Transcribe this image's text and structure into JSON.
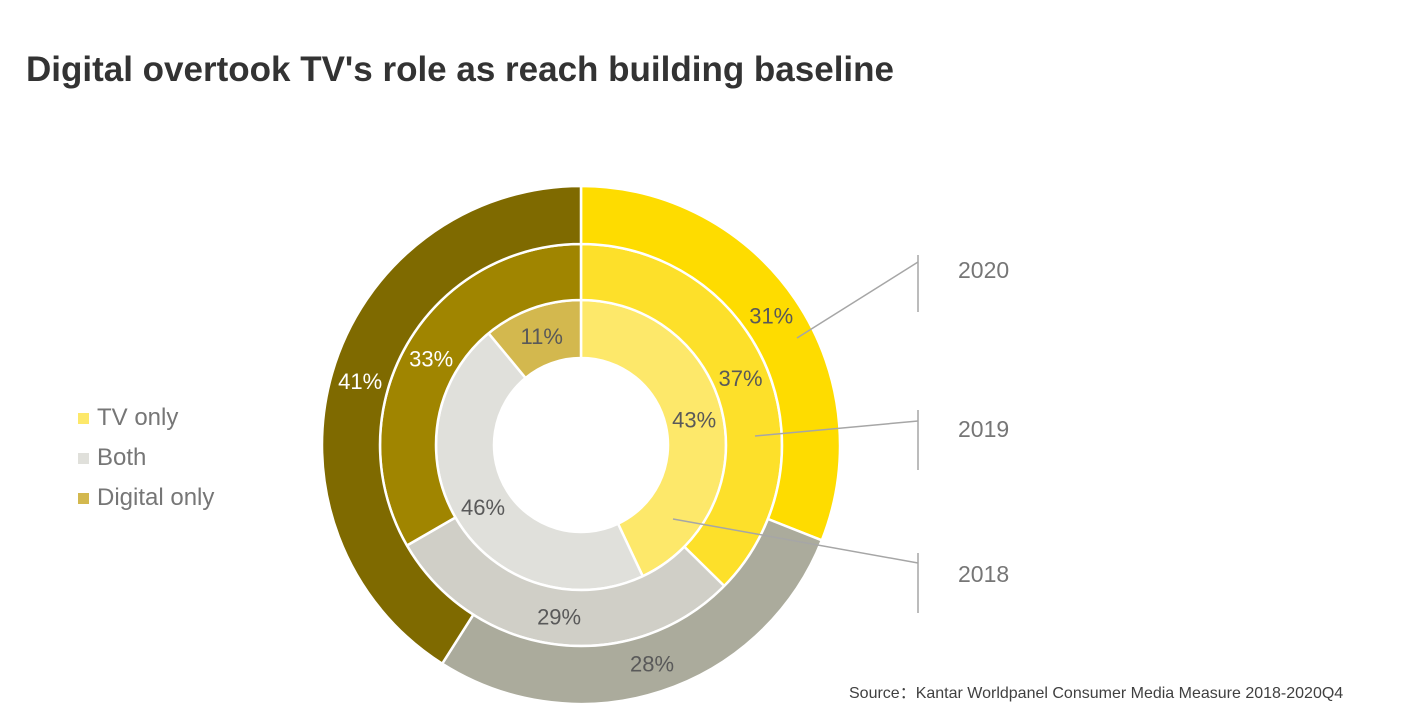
{
  "chart_data": {
    "type": "pie",
    "subtype": "multi-ring donut",
    "title": "Digital overtook TV's role as reach building baseline",
    "categories": [
      "TV only",
      "Both",
      "Digital only"
    ],
    "series": [
      {
        "name": "2018",
        "values": [
          43,
          46,
          11
        ],
        "labels": [
          "43%",
          "46%",
          "11%"
        ],
        "colors": [
          "#FDE86A",
          "#E0E0DB",
          "#D3B84E"
        ]
      },
      {
        "name": "2019",
        "values": [
          37,
          29,
          33
        ],
        "labels": [
          "37%",
          "29%",
          "33%"
        ],
        "colors": [
          "#FDE02A",
          "#D0CFC7",
          "#A08500"
        ]
      },
      {
        "name": "2020",
        "values": [
          31,
          28,
          41
        ],
        "labels": [
          "31%",
          "28%",
          "41%"
        ],
        "colors": [
          "#FEDC00",
          "#ABAB9C",
          "#7F6A00"
        ]
      }
    ],
    "legend": {
      "placement": "left",
      "entries": [
        "TV only",
        "Both",
        "Digital only"
      ],
      "colors": [
        "#FDE86A",
        "#E0E0DB",
        "#D3B84E"
      ]
    },
    "ring_order": "2018 innermost, 2020 outermost"
  },
  "source": "Source：Kantar Worldpanel Consumer Media Measure 2018-2020Q4"
}
